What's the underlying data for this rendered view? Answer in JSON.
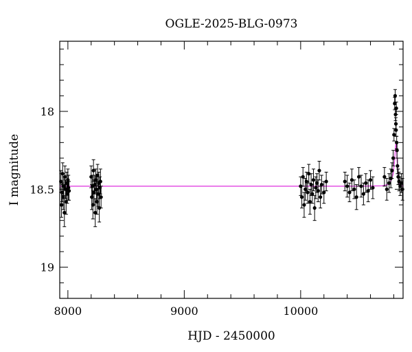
{
  "chart_data": {
    "type": "scatter",
    "title": "OGLE-2025-BLG-0973",
    "xlabel": "HJD - 2450000",
    "ylabel": "I magnitude",
    "xlim": [
      7930,
      10880
    ],
    "ylim": [
      19.2,
      17.55
    ],
    "y_inverted": true,
    "grid": false,
    "xticks": [
      8000,
      9000,
      10000
    ],
    "yticks": [
      18,
      18.5,
      19
    ],
    "ytick_labels": [
      "18",
      "18.5",
      "19"
    ],
    "model_color": "#e040e0",
    "point_color": "#000000",
    "baseline_mag": 18.48,
    "model_curve": {
      "x": [
        7930,
        9500,
        10500,
        10700,
        10750,
        10780,
        10795,
        10805,
        10812,
        10818,
        10822,
        10828,
        10835,
        10845,
        10860,
        10880
      ],
      "y": [
        18.48,
        18.48,
        18.48,
        18.478,
        18.47,
        18.44,
        18.4,
        18.33,
        18.26,
        18.2,
        18.22,
        18.3,
        18.4,
        18.46,
        18.475,
        18.48
      ]
    },
    "observations": {
      "x": [
        7940,
        7945,
        7950,
        7955,
        7960,
        7965,
        7970,
        7975,
        7980,
        7985,
        7990,
        7995,
        8000,
        8005,
        8010,
        8200,
        8205,
        8210,
        8215,
        8220,
        8225,
        8230,
        8235,
        8240,
        8245,
        8250,
        8255,
        8260,
        8265,
        8270,
        8275,
        8280,
        8285,
        10000,
        10010,
        10020,
        10030,
        10040,
        10050,
        10060,
        10070,
        10080,
        10090,
        10100,
        10110,
        10120,
        10130,
        10140,
        10150,
        10160,
        10170,
        10180,
        10200,
        10220,
        10380,
        10400,
        10420,
        10440,
        10460,
        10480,
        10500,
        10520,
        10540,
        10560,
        10580,
        10600,
        10620,
        10720,
        10740,
        10760,
        10775,
        10785,
        10795,
        10802,
        10808,
        10812,
        10815,
        10818,
        10820,
        10822,
        10825,
        10828,
        10832,
        10838,
        10845,
        10855,
        10865,
        10875
      ],
      "y": [
        18.45,
        18.6,
        18.52,
        18.4,
        18.55,
        18.48,
        18.65,
        18.42,
        18.5,
        18.58,
        18.46,
        18.53,
        18.44,
        18.49,
        18.51,
        18.42,
        18.55,
        18.48,
        18.6,
        18.38,
        18.52,
        18.47,
        18.65,
        18.44,
        18.5,
        18.58,
        18.41,
        18.53,
        18.46,
        18.62,
        18.49,
        18.45,
        18.55,
        18.48,
        18.55,
        18.42,
        18.6,
        18.5,
        18.45,
        18.52,
        18.4,
        18.58,
        18.47,
        18.53,
        18.44,
        18.62,
        18.49,
        18.46,
        18.51,
        18.38,
        18.55,
        18.47,
        18.52,
        18.45,
        18.45,
        18.48,
        18.52,
        18.44,
        18.5,
        18.55,
        18.42,
        18.48,
        18.53,
        18.46,
        18.51,
        18.44,
        18.49,
        18.42,
        18.5,
        18.46,
        18.43,
        18.38,
        18.3,
        18.15,
        17.95,
        17.9,
        18.02,
        18.08,
        18.12,
        17.98,
        18.2,
        18.25,
        18.35,
        18.42,
        18.45,
        18.48,
        18.46,
        18.5
      ],
      "err": [
        0.07,
        0.08,
        0.06,
        0.07,
        0.08,
        0.06,
        0.09,
        0.07,
        0.06,
        0.08,
        0.07,
        0.06,
        0.07,
        0.08,
        0.06,
        0.07,
        0.08,
        0.07,
        0.09,
        0.07,
        0.08,
        0.06,
        0.09,
        0.07,
        0.08,
        0.08,
        0.07,
        0.08,
        0.07,
        0.09,
        0.07,
        0.08,
        0.07,
        0.06,
        0.07,
        0.06,
        0.08,
        0.07,
        0.06,
        0.07,
        0.06,
        0.08,
        0.07,
        0.06,
        0.07,
        0.08,
        0.07,
        0.06,
        0.07,
        0.06,
        0.07,
        0.06,
        0.07,
        0.06,
        0.06,
        0.07,
        0.06,
        0.07,
        0.06,
        0.08,
        0.06,
        0.07,
        0.07,
        0.06,
        0.07,
        0.06,
        0.07,
        0.06,
        0.07,
        0.06,
        0.06,
        0.05,
        0.05,
        0.04,
        0.04,
        0.04,
        0.04,
        0.04,
        0.04,
        0.04,
        0.04,
        0.05,
        0.05,
        0.05,
        0.06,
        0.06,
        0.06,
        0.07
      ]
    }
  }
}
